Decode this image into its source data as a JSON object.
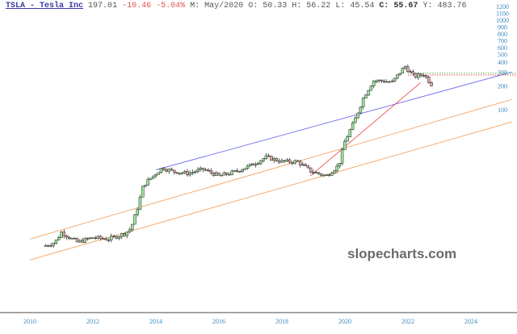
{
  "header": {
    "ticker_link": "TSLA - Tesla Inc",
    "last_price": "197.01",
    "change": "-10.46",
    "change_pct": "-5.04%",
    "m_label": "M:",
    "m_value": "May/2020",
    "o_label": "O:",
    "o_value": "50.33",
    "h_label": "H:",
    "h_value": "56.22",
    "l_label": "L:",
    "l_value": "45.54",
    "c_label": "C:",
    "c_value": "55.67",
    "y_label": "Y:",
    "y_value": "483.76"
  },
  "watermark": "slopecharts.com",
  "colors": {
    "up": "#9be89b",
    "down": "#e8a8a8",
    "blue_trend": "#6a6af0",
    "orange_trend": "#f5a35f",
    "red_trend": "#f05050",
    "axis_text": "#3a88c0"
  },
  "chart_data": {
    "type": "candlestick",
    "y_scale": "log",
    "x_ticks": [
      "2010",
      "2012",
      "2014",
      "2016",
      "2018",
      "2020",
      "2022",
      "2024"
    ],
    "y_ticks": [
      "100",
      "200",
      "300",
      "400",
      "500",
      "600",
      "700",
      "800",
      "900",
      "1000",
      "1100",
      "1200"
    ],
    "xlim": [
      2009.95,
      2025.3
    ],
    "approx_close_path": [
      {
        "t": 2010.5,
        "p": 1.9
      },
      {
        "t": 2010.8,
        "p": 2.1
      },
      {
        "t": 2011.0,
        "p": 2.8
      },
      {
        "t": 2011.5,
        "p": 2.1
      },
      {
        "t": 2012.0,
        "p": 2.4
      },
      {
        "t": 2012.5,
        "p": 2.3
      },
      {
        "t": 2013.0,
        "p": 2.7
      },
      {
        "t": 2013.2,
        "p": 3.1
      },
      {
        "t": 2013.4,
        "p": 5.4
      },
      {
        "t": 2013.6,
        "p": 11
      },
      {
        "t": 2013.8,
        "p": 13.2
      },
      {
        "t": 2014.0,
        "p": 15.6
      },
      {
        "t": 2014.2,
        "p": 18.4
      },
      {
        "t": 2014.5,
        "p": 16.7
      },
      {
        "t": 2015.0,
        "p": 15.6
      },
      {
        "t": 2015.5,
        "p": 17.6
      },
      {
        "t": 2016.0,
        "p": 14.5
      },
      {
        "t": 2016.5,
        "p": 16.3
      },
      {
        "t": 2017.0,
        "p": 19.7
      },
      {
        "t": 2017.5,
        "p": 25
      },
      {
        "t": 2018.0,
        "p": 22
      },
      {
        "t": 2018.5,
        "p": 22
      },
      {
        "t": 2018.9,
        "p": 16.7
      },
      {
        "t": 2019.4,
        "p": 14.5
      },
      {
        "t": 2019.8,
        "p": 19.7
      },
      {
        "t": 2020.0,
        "p": 40
      },
      {
        "t": 2020.3,
        "p": 72
      },
      {
        "t": 2020.6,
        "p": 146
      },
      {
        "t": 2020.9,
        "p": 233
      },
      {
        "t": 2021.2,
        "p": 233
      },
      {
        "t": 2021.5,
        "p": 222
      },
      {
        "t": 2021.9,
        "p": 356
      },
      {
        "t": 2022.2,
        "p": 262
      },
      {
        "t": 2022.5,
        "p": 281
      },
      {
        "t": 2022.8,
        "p": 197
      }
    ],
    "trendlines": [
      {
        "color": "blue",
        "from": {
          "t": 2014.0,
          "p": 17.3
        },
        "to": {
          "t": 2025.3,
          "p": 300
        }
      },
      {
        "color": "orange",
        "from": {
          "t": 2010.0,
          "p": 2.3
        },
        "to": {
          "t": 2025.3,
          "p": 135
        }
      },
      {
        "color": "orange",
        "from": {
          "t": 2010.0,
          "p": 1.25
        },
        "to": {
          "t": 2025.3,
          "p": 70
        }
      },
      {
        "color": "red",
        "from": {
          "t": 2018.9,
          "p": 14.5
        },
        "to": {
          "t": 2022.4,
          "p": 220
        }
      }
    ],
    "horizontal_levels": [
      {
        "p": 290,
        "color": "green",
        "style": "dotted"
      },
      {
        "p": 275,
        "color": "red",
        "style": "dotted"
      }
    ]
  }
}
